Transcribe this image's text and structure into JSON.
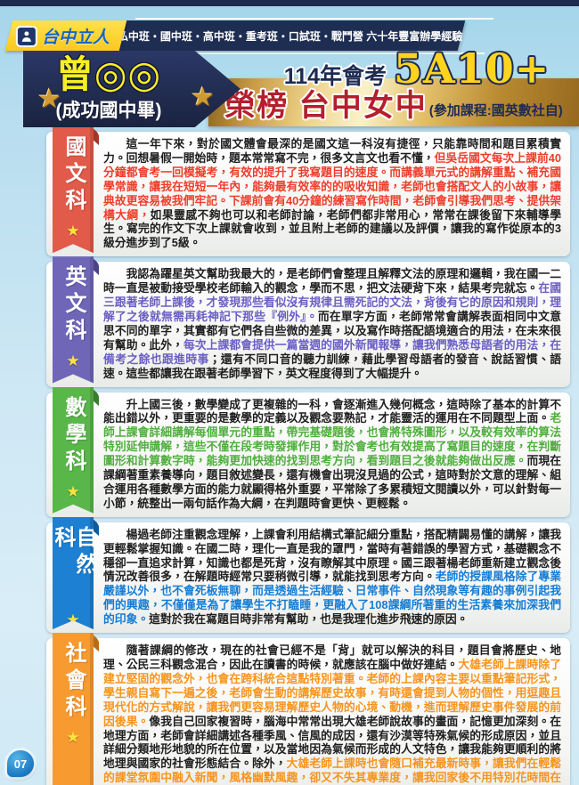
{
  "header": {
    "logo_text": "台中立人",
    "tagline": "私中班・國中班・高中班・重考班・口試班・戰鬥營 六十年豐富辦學經驗"
  },
  "banner": {
    "student_name": "曾◎◎",
    "student_school": "(成功國中畢)",
    "exam_label": "114年會考",
    "score": "5A10+",
    "result_text": "榮榜 台中女中",
    "courses_note": "(參加課程:國英數社自)"
  },
  "icons": {
    "star": "★"
  },
  "page_number": "07",
  "sections": [
    {
      "id": "chinese",
      "subject": "國文科",
      "ribbon_color": "#e25a4a",
      "text_color": "#ee3d2a",
      "fold_color": "#a33728",
      "runs": [
        {
          "highlight": false,
          "text": "這一年下來，對於國文體會最深的是國文這一科沒有捷徑，只能靠時間和題目累積實力。回想暑假一開始時，題本常常寫不完，很多文言文也看不懂，"
        },
        {
          "highlight": true,
          "text": "但吳岳國文每次上課前40分鐘都會考一回模擬考，有效的提升了我寫題目的速度。而講義單元式的講解重點、補充國學常識，讓我在短短一年內，能夠最有效率的的吸收知識，老師也會搭配文人的小故事，讓典故更容易被我們牢記。下課前會有40分鐘的練習寫作時間，老師會引導我們思考、提供架構大綱，"
        },
        {
          "highlight": false,
          "text": "如果靈感不夠也可以和老師討論，老師們都非常用心，常常在課後留下來輔導學生。寫完的作文下次上課就會收到，並且附上老師的建議以及評價，讓我的寫作從原本的3級分進步到了5級。"
        }
      ]
    },
    {
      "id": "english",
      "subject": "英文科",
      "ribbon_color": "#6f66b8",
      "text_color": "#6a5ec4",
      "fold_color": "#4a4486",
      "runs": [
        {
          "highlight": false,
          "text": "我認為躍星英文幫助我最大的，是老師們會整理且解釋文法的原理和邏輯，我在國一二時一直是被動接受學校老師輸入的觀念，學而不思，把文法硬背下來，結果考完就忘。"
        },
        {
          "highlight": true,
          "text": "在國三跟著老師上課後，才發現那些看似沒有規律且需死記的文法，背後有它的原因和規則，理解了之後就無需再耗神記下那些『例外』。"
        },
        {
          "highlight": false,
          "text": "而在單字方面，老師常常會講解表面相同中文意思不同的單字，其實都有它們各自些微的差異，以及寫作時搭配語境適合的用法，在未來很有幫助。此外，"
        },
        {
          "highlight": true,
          "text": "每次上課都會提供一篇當週的國外新聞報導，讓我們熟悉母語者的用法，在備考之餘也跟進時事"
        },
        {
          "highlight": false,
          "text": "；還有不同口音的聽力訓練，藉此學習母語者的發音、說話習慣、語速。這些都讓我在跟著老師學習下，英文程度得到了大幅提升。"
        }
      ]
    },
    {
      "id": "math",
      "subject": "數學科",
      "ribbon_color": "#58b748",
      "text_color": "#4fae3d",
      "fold_color": "#3a7d2c",
      "runs": [
        {
          "highlight": false,
          "text": "升上國三後，數學變成了更複雜的一科，會逐漸進入幾何概念，這時除了基本的計算不能出錯以外，更重要的是數學的定義以及觀念要熟記，才能靈活的運用在不同題型上面。"
        },
        {
          "highlight": true,
          "text": "老師上課會詳細講解每個單元的重點，帶完基礎題後，也會將特殊圖形，以及較有效率的算法特別延伸講解，這些不僅在段考時發揮作用，對於會考也有效提高了寫題目的速度，在判斷圖形和計算數字時，能夠更加快速的找到思考方向，看到題目之後就能夠做出反應。"
        },
        {
          "highlight": false,
          "text": "而現在課綱著重素養導向，題目敘述變長，還有機會出現沒見過的公式，這時對於文意的理解、組合運用各種數學方面的能力就顯得格外重要，平常除了多累積短文閱讀以外，可以針對每一小節，統整出一兩句話作為大綱，在判題時會更快、更輕鬆。"
        }
      ]
    },
    {
      "id": "science",
      "subject": "自然科",
      "ribbon_color": "#1d80d2",
      "text_color": "#147cd4",
      "fold_color": "#115a96",
      "runs": [
        {
          "highlight": false,
          "text": "楊過老師注重觀念理解，上課會利用結構式筆記細分重點，搭配精闢易懂的講解，讓我更輕鬆掌握知識。在國二時，理化一直是我的罩門，當時有著錯誤的學習方式，基礎觀念不穩卻一直追求計算，知識也都是死背，沒有瞭解其中原理。國三跟著楊老師重新建立觀念後情況改善很多，在解題時經常只要稍微引導，就能找到思考方向。"
        },
        {
          "highlight": true,
          "text": "老師的授課風格除了專業嚴謹以外，也不會死板無聊，而是透過生活經驗、日常事件、自然現象等有趣的事例引起我們的興趣，不僅僅是為了讓學生不打瞌睡，更融入了108課綱所著重的生活素養來加深我們的印象。"
        },
        {
          "highlight": false,
          "text": "這對於我在寫題目時非常有幫助，也是我理化進步飛速的原因。"
        }
      ]
    },
    {
      "id": "social",
      "subject": "社會科",
      "ribbon_color": "#f79b31",
      "text_color": "#f7941d",
      "fold_color": "#b96d12",
      "runs": [
        {
          "highlight": false,
          "text": "隨著課綱的修改，現在的社會已經不是「背」就可以解決的科目，題目會將歷史、地理、公民三科觀念混合，因此在讀書的時候，就應該在腦中做好連結。"
        },
        {
          "highlight": true,
          "text": "大雄老師上課時除了建立堅固的觀念外，也會在跨科統合這點特別著重。老師的上課內容主要以重點筆記形式，學生親自寫下一遍之後，老師會生動的講解歷史故事，有時還會提到人物的個性，用逗趣且現代化的方式解說，讓我們更容易理解歷史人物的心境、動機，進而理解歷史事件發展的前因後果。"
        },
        {
          "highlight": false,
          "text": "像我自己回家複習時，腦海中常常出現大雄老師說故事的畫面，記憶更加深刻。在地理方面，老師會詳細講述各種季風、信風的成因，還有沙漠等特殊氣候的形成原因，並且詳細分類地形地貌的所在位置，以及當地因為氣候而形成的人文特色，讓我能夠更順利的將地理與國家的社會形態結合。除外，"
        },
        {
          "highlight": true,
          "text": "大雄老師上課時也會隨口補充最新時事，讓我們在輕鬆的課堂氛圍中融入新聞，風格幽默風趣，卻又不失其專業度，讓我回家後不用特別花時間在社會，可以好好準備其他不熟的科目。"
        }
      ]
    }
  ]
}
